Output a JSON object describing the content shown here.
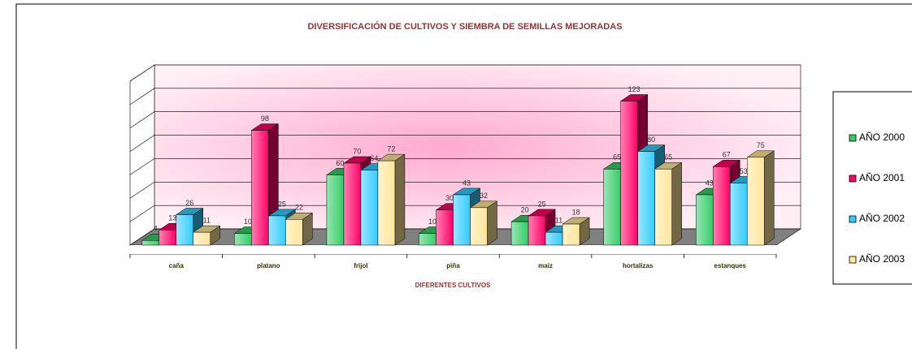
{
  "chart_data": {
    "type": "bar3d",
    "title": "DIVERSIFICACIÓN DE CULTIVOS Y SIEMBRA DE SEMILLAS MEJORADAS",
    "x_label": "DIFERENTES CULTIVOS",
    "categories": [
      "caña",
      "platano",
      "frijol",
      "piña",
      "maiz",
      "hortalizas",
      "estanques"
    ],
    "series": [
      {
        "name": "AÑO 2000",
        "color": "#33cc66",
        "values": [
          4,
          10,
          60,
          10,
          20,
          65,
          43
        ]
      },
      {
        "name": "AÑO 2001",
        "color": "#ff0066",
        "values": [
          13,
          98,
          70,
          30,
          25,
          123,
          67
        ]
      },
      {
        "name": "AÑO 2002",
        "color": "#33ccff",
        "values": [
          26,
          25,
          64,
          43,
          11,
          80,
          53
        ]
      },
      {
        "name": "AÑO 2003",
        "color": "#ffe699",
        "values": [
          11,
          22,
          72,
          32,
          18,
          65,
          75
        ]
      }
    ],
    "ylim": [
      0,
      140
    ],
    "yticks": [
      0,
      20,
      40,
      60,
      80,
      100,
      120,
      140
    ],
    "grid": true,
    "legend": "right"
  }
}
